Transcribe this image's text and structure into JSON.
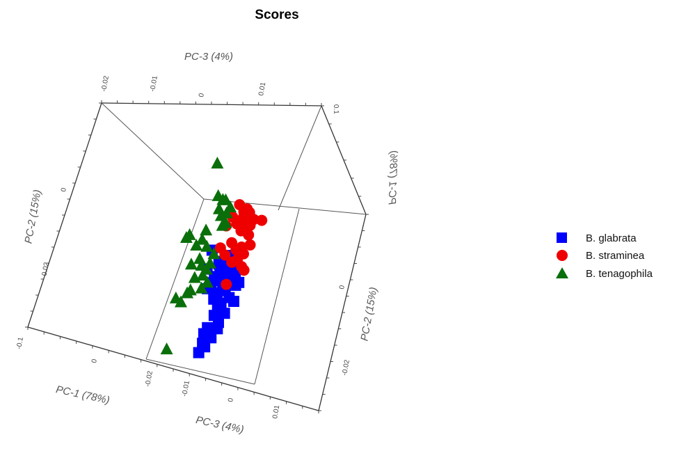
{
  "chart_data": {
    "type": "scatter",
    "title": "Scores",
    "projection": "3d",
    "axes": {
      "pc1": {
        "label": "PC-1 (78%)",
        "ticks": [
          "-0.1",
          "0"
        ]
      },
      "pc2": {
        "label": "PC-2 (15%)",
        "ticks_left": [
          "0",
          "-0.02"
        ],
        "ticks_right": [
          "0",
          "-0.02"
        ]
      },
      "pc3": {
        "label": "PC-3 (4%)",
        "ticks_top": [
          "-0.02",
          "-0.01",
          "0",
          "0.01"
        ],
        "ticks_bottom": [
          "-0.02",
          "-0.01",
          "0",
          "0.01"
        ]
      },
      "pc1_top_right": {
        "label": "PC-1 (78%)",
        "ticks": [
          "0.1"
        ]
      }
    },
    "legend_position": "right",
    "series": [
      {
        "name": "B. glabrata",
        "marker": "square",
        "color": "#0000ff",
        "points": [
          [
            0.005,
            -0.006,
            0.003
          ],
          [
            0.004,
            -0.008,
            0.001
          ],
          [
            0.006,
            -0.01,
            0.002
          ],
          [
            0.003,
            -0.009,
            -0.001
          ],
          [
            0.002,
            -0.011,
            0.0
          ],
          [
            0.001,
            -0.013,
            -0.002
          ],
          [
            0.004,
            -0.014,
            0.001
          ],
          [
            0.006,
            -0.012,
            0.004
          ],
          [
            0.003,
            -0.016,
            0.002
          ],
          [
            0.0,
            -0.015,
            -0.003
          ],
          [
            0.002,
            -0.018,
            0.0
          ],
          [
            0.005,
            -0.017,
            0.003
          ],
          [
            0.001,
            -0.02,
            -0.001
          ],
          [
            0.004,
            -0.021,
            0.002
          ],
          [
            0.006,
            -0.019,
            0.005
          ],
          [
            0.003,
            -0.023,
            0.001
          ],
          [
            0.002,
            -0.025,
            0.0
          ],
          [
            0.004,
            -0.027,
            0.002
          ],
          [
            0.0,
            -0.029,
            -0.002
          ],
          [
            -0.002,
            -0.031,
            -0.003
          ],
          [
            0.001,
            -0.032,
            0.0
          ],
          [
            -0.001,
            -0.035,
            -0.002
          ],
          [
            -0.003,
            -0.037,
            -0.004
          ],
          [
            -0.002,
            -0.034,
            -0.003
          ],
          [
            0.007,
            -0.008,
            0.006
          ],
          [
            0.008,
            -0.011,
            0.006
          ],
          [
            0.007,
            -0.015,
            0.007
          ],
          [
            0.008,
            -0.02,
            0.007
          ],
          [
            -0.003,
            -0.005,
            -0.004
          ],
          [
            -0.004,
            -0.011,
            -0.005
          ],
          [
            -0.002,
            -0.017,
            -0.004
          ],
          [
            0.005,
            -0.024,
            0.004
          ],
          [
            0.003,
            -0.029,
            0.002
          ],
          [
            0.009,
            -0.014,
            0.008
          ]
        ]
      },
      {
        "name": "B. straminea",
        "marker": "circle",
        "color": "#ee0000",
        "points": [
          [
            0.008,
            0.01,
            0.004
          ],
          [
            0.01,
            0.008,
            0.006
          ],
          [
            0.012,
            0.009,
            0.007
          ],
          [
            0.014,
            0.008,
            0.008
          ],
          [
            0.016,
            0.006,
            0.01
          ],
          [
            0.007,
            0.004,
            0.004
          ],
          [
            0.009,
            0.002,
            0.006
          ],
          [
            0.011,
            0.003,
            0.007
          ],
          [
            0.013,
            0.001,
            0.009
          ],
          [
            0.006,
            -0.002,
            0.003
          ],
          [
            0.008,
            -0.004,
            0.005
          ],
          [
            0.01,
            -0.003,
            0.007
          ],
          [
            0.012,
            -0.005,
            0.008
          ],
          [
            0.005,
            0.006,
            0.002
          ],
          [
            0.004,
            -0.006,
            0.001
          ],
          [
            0.007,
            -0.008,
            0.004
          ],
          [
            0.009,
            -0.007,
            0.006
          ],
          [
            0.011,
            -0.009,
            0.008
          ],
          [
            0.013,
            -0.01,
            0.009
          ],
          [
            0.02,
            0.006,
            0.013
          ],
          [
            0.015,
            -0.002,
            0.01
          ],
          [
            0.003,
            0.003,
            0.0
          ],
          [
            0.001,
            -0.004,
            -0.001
          ],
          [
            0.006,
            -0.015,
            0.003
          ],
          [
            0.014,
            0.004,
            0.009
          ],
          [
            0.01,
            0.006,
            0.006
          ]
        ]
      },
      {
        "name": "B. tenagophila",
        "marker": "triangle",
        "color": "#0a6f0a",
        "points": [
          [
            -0.008,
            0.022,
            -0.006
          ],
          [
            -0.006,
            0.012,
            -0.004
          ],
          [
            -0.004,
            0.011,
            -0.002
          ],
          [
            -0.002,
            0.011,
            -0.001
          ],
          [
            -0.005,
            0.008,
            -0.003
          ],
          [
            -0.003,
            0.006,
            -0.002
          ],
          [
            -0.001,
            0.007,
            0.0
          ],
          [
            0.001,
            0.009,
            0.001
          ],
          [
            -0.018,
            -0.002,
            -0.014
          ],
          [
            -0.016,
            -0.001,
            -0.013
          ],
          [
            -0.012,
            -0.004,
            -0.01
          ],
          [
            -0.01,
            -0.008,
            -0.008
          ],
          [
            -0.009,
            -0.01,
            -0.007
          ],
          [
            -0.008,
            -0.013,
            -0.006
          ],
          [
            -0.006,
            -0.011,
            -0.005
          ],
          [
            -0.011,
            -0.014,
            -0.009
          ],
          [
            -0.012,
            -0.018,
            -0.01
          ],
          [
            -0.014,
            -0.019,
            -0.011
          ],
          [
            -0.016,
            -0.022,
            -0.013
          ],
          [
            -0.019,
            -0.021,
            -0.015
          ],
          [
            -0.02,
            -0.037,
            -0.016
          ],
          [
            -0.007,
            -0.004,
            -0.006
          ],
          [
            -0.003,
            -0.006,
            -0.003
          ],
          [
            -0.004,
            -0.009,
            -0.004
          ],
          [
            -0.002,
            0.003,
            -0.001
          ],
          [
            0.0,
            0.004,
            0.0
          ],
          [
            -0.009,
            0.001,
            -0.007
          ],
          [
            -0.01,
            -0.002,
            -0.008
          ],
          [
            -0.005,
            -0.015,
            -0.004
          ],
          [
            -0.007,
            -0.017,
            -0.006
          ],
          [
            -0.013,
            -0.01,
            -0.011
          ]
        ]
      }
    ],
    "legend": [
      "B. glabrata",
      "B. straminea",
      "B. tenagophila"
    ]
  }
}
